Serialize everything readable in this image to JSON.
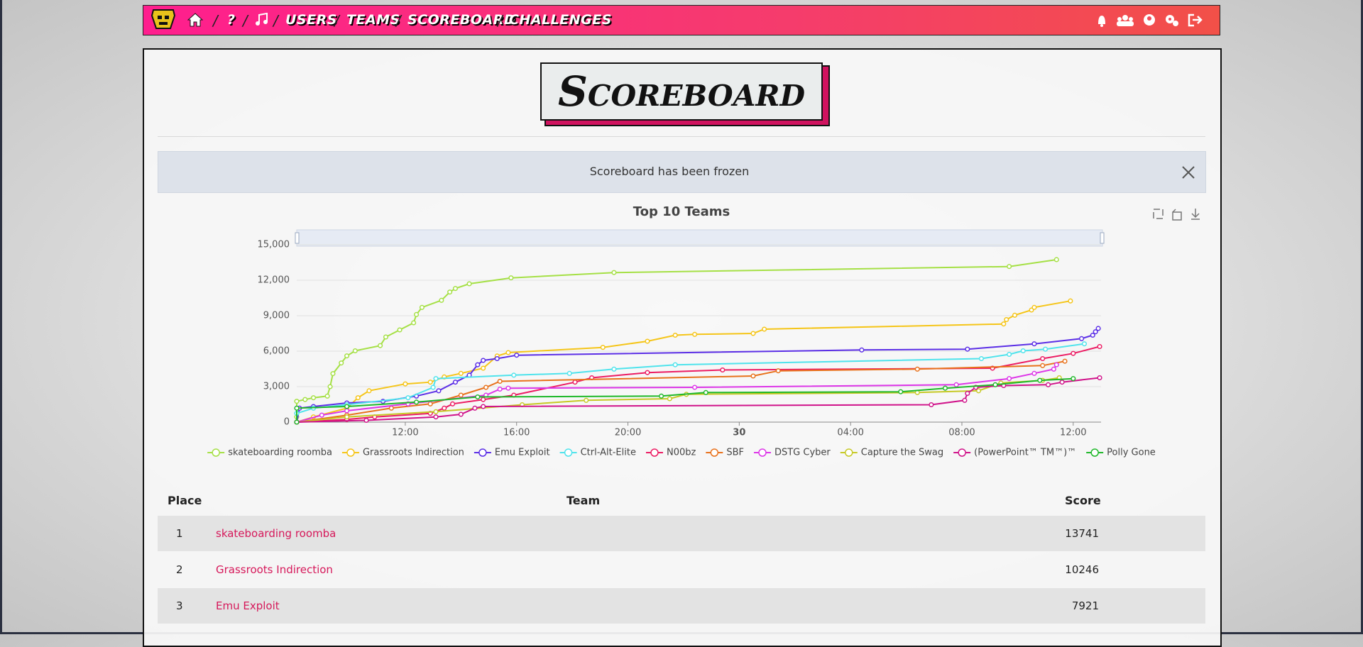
{
  "nav": {
    "items": [
      "?",
      "USERS",
      "TEAMS",
      "SCOREBOARD",
      "CHALLENGES"
    ]
  },
  "heading": "Scoreboard",
  "alert": "Scoreboard has been frozen",
  "chart_data": {
    "type": "line",
    "title": "Top 10 Teams",
    "xlim": [
      8.1,
      37.0
    ],
    "xticks": [
      {
        "value": 12,
        "label": "12:00"
      },
      {
        "value": 16,
        "label": "16:00"
      },
      {
        "value": 20,
        "label": "20:00"
      },
      {
        "value": 24,
        "label": "30"
      },
      {
        "value": 28,
        "label": "04:00"
      },
      {
        "value": 32,
        "label": "08:00"
      },
      {
        "value": 36,
        "label": "12:00"
      }
    ],
    "ylim": [
      0,
      15000
    ],
    "yticks": [
      0,
      {
        "value": 3000,
        "label": "3,000"
      },
      {
        "value": 6000,
        "label": "6,000"
      },
      {
        "value": 9000,
        "label": "9,000"
      },
      {
        "value": 12000,
        "label": "12,000"
      },
      {
        "value": 15000,
        "label": "15,000"
      }
    ],
    "grid": true,
    "series": [
      {
        "name": "skateboarding roomba",
        "color": "#a5e045",
        "x": [
          8.1,
          8.1,
          8.4,
          8.7,
          9.2,
          9.3,
          9.4,
          9.7,
          9.9,
          10.2,
          11.1,
          11.3,
          11.8,
          12.3,
          12.4,
          12.6,
          13.3,
          13.6,
          13.8,
          14.3,
          15.8,
          19.5,
          33.7,
          35.4
        ],
        "values": [
          440,
          1760,
          1910,
          2060,
          2200,
          3000,
          4100,
          5000,
          5600,
          6030,
          6470,
          7200,
          7800,
          8400,
          9100,
          9700,
          10300,
          11000,
          11300,
          11700,
          12200,
          12650,
          13160,
          13741
        ]
      },
      {
        "name": "Grassroots Indirection",
        "color": "#f5c518",
        "x": [
          8.1,
          8.7,
          9.9,
          10.3,
          10.7,
          12.0,
          12.9,
          13.4,
          14.0,
          14.8,
          15.3,
          15.7,
          19.1,
          20.7,
          21.7,
          22.4,
          24.5,
          24.9,
          33.5,
          33.6,
          33.9,
          34.5,
          34.6,
          35.9
        ],
        "values": [
          0,
          440,
          1180,
          2060,
          2650,
          3230,
          3380,
          3820,
          4120,
          4560,
          5590,
          5880,
          6320,
          6840,
          7350,
          7420,
          7500,
          7860,
          8300,
          8670,
          9040,
          9480,
          9700,
          10246
        ]
      },
      {
        "name": "Emu Exploit",
        "color": "#5b2ee6",
        "x": [
          8.1,
          8.2,
          8.7,
          9.9,
          11.2,
          12.4,
          13.2,
          13.8,
          14.3,
          14.6,
          14.8,
          15.3,
          16.0,
          28.4,
          32.2,
          34.6,
          36.3,
          36.7,
          36.8,
          36.9
        ],
        "values": [
          0,
          1180,
          1320,
          1620,
          1760,
          2200,
          2650,
          3380,
          3970,
          4850,
          5220,
          5370,
          5660,
          6100,
          6170,
          6620,
          7060,
          7350,
          7640,
          7921
        ]
      },
      {
        "name": "Ctrl-Alt-Elite",
        "color": "#4fe3ec",
        "x": [
          8.1,
          8.7,
          9.9,
          12.1,
          13.0,
          13.1,
          15.9,
          17.9,
          19.5,
          21.7,
          32.7,
          33.7,
          34.2,
          35.0,
          36.4
        ],
        "values": [
          740,
          1180,
          1470,
          2060,
          2940,
          3680,
          3970,
          4120,
          4480,
          4850,
          5370,
          5730,
          6030,
          6170,
          6620
        ]
      },
      {
        "name": "N00bz",
        "color": "#ec1c63",
        "x": [
          8.1,
          9.9,
          10.9,
          12.9,
          13.4,
          13.7,
          14.8,
          15.9,
          18.1,
          18.7,
          20.7,
          23.4,
          33.1,
          34.9,
          36.0,
          36.95
        ],
        "values": [
          0,
          220,
          440,
          740,
          1180,
          1540,
          1910,
          2280,
          3380,
          3750,
          4190,
          4410,
          4560,
          5370,
          5810,
          6390
        ]
      },
      {
        "name": "SBF",
        "color": "#e8711b",
        "x": [
          8.1,
          9.9,
          11.5,
          12.9,
          14.0,
          14.9,
          15.4,
          24.5,
          25.4,
          30.4,
          34.9,
          35.7
        ],
        "values": [
          0,
          590,
          1180,
          1540,
          2280,
          2940,
          3450,
          3900,
          4340,
          4480,
          4780,
          5150
        ]
      },
      {
        "name": "DSTG Cyber",
        "color": "#dd35e8",
        "x": [
          8.1,
          9.0,
          9.9,
          12.1,
          14.9,
          15.4,
          15.7,
          22.4,
          31.8,
          33.7,
          34.6,
          35.3,
          35.4
        ],
        "values": [
          0,
          590,
          960,
          1540,
          2280,
          2790,
          2870,
          2940,
          3160,
          3680,
          4120,
          4480,
          4850
        ]
      },
      {
        "name": "Capture the Swag",
        "color": "#c6c925",
        "x": [
          8.1,
          9.9,
          13.1,
          16.2,
          18.5,
          21.5,
          22.1,
          30.4,
          32.6,
          33.4,
          34.9,
          35.5
        ],
        "values": [
          0,
          440,
          880,
          1470,
          1840,
          1980,
          2350,
          2500,
          2650,
          3310,
          3530,
          3750
        ]
      },
      {
        "name": "(PowerPoint™ TM™)™",
        "color": "#d0138a",
        "x": [
          8.1,
          10.6,
          13.1,
          14.0,
          14.5,
          14.8,
          30.9,
          32.1,
          32.2,
          32.5,
          33.5,
          35.1,
          35.6,
          36.95
        ],
        "values": [
          0,
          150,
          440,
          660,
          1180,
          1320,
          1470,
          1840,
          2430,
          2940,
          3090,
          3160,
          3380,
          3750
        ]
      },
      {
        "name": "Polly Gone",
        "color": "#1fb82a",
        "x": [
          8.1,
          8.1,
          9.9,
          12.4,
          14.6,
          21.2,
          22.8,
          29.8,
          31.4,
          33.2,
          34.8,
          36.0
        ],
        "values": [
          0,
          1180,
          1320,
          1690,
          2130,
          2200,
          2500,
          2570,
          2870,
          3160,
          3530,
          3680
        ]
      }
    ]
  },
  "table": {
    "header": [
      "Place",
      "Team",
      "Score"
    ],
    "rows": [
      [
        1,
        "skateboarding roomba",
        13741
      ],
      [
        2,
        "Grassroots Indirection",
        10246
      ],
      [
        3,
        "Emu Exploit",
        7921
      ]
    ]
  }
}
